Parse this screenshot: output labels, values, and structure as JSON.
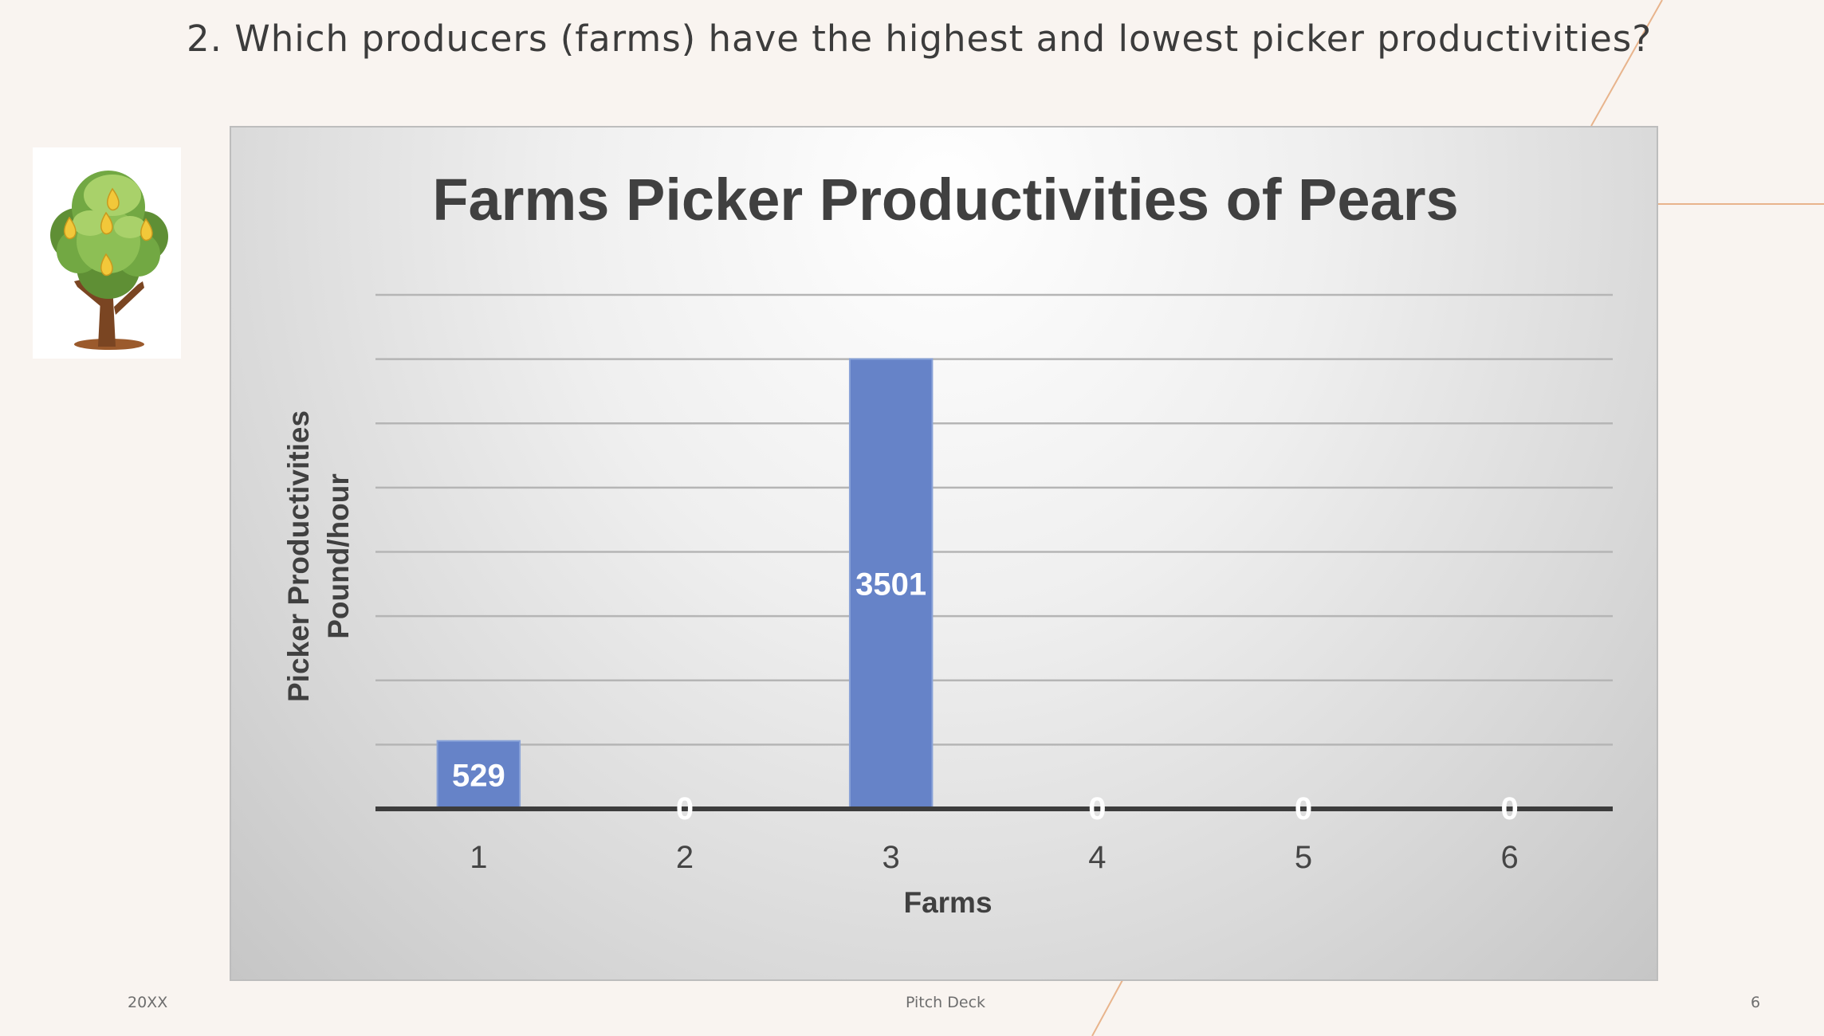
{
  "slide": {
    "heading": "2. Which producers (farms) have the highest and lowest picker productivities?",
    "footer_left": "20XX",
    "footer_center": "Pitch Deck",
    "footer_right": "6",
    "background_color": "#f9f4f0",
    "accent_line_color": "#e8b48c"
  },
  "illustration": {
    "icon": "pear-tree-icon"
  },
  "chart_data": {
    "type": "bar",
    "title": "Farms Picker Productivities of Pears",
    "xlabel": "Farms",
    "ylabel_lines": [
      "Picker Productivities",
      "Pound/hour"
    ],
    "categories": [
      "1",
      "2",
      "3",
      "4",
      "5",
      "6"
    ],
    "values": [
      529,
      0,
      3501,
      0,
      0,
      0
    ],
    "data_labels": [
      "529",
      "0",
      "3501",
      "0",
      "0",
      "0"
    ],
    "ylim": [
      0,
      4000
    ],
    "y_gridline_step": 500,
    "y_tick_labels_shown": false,
    "grid": true,
    "legend": "none",
    "bar_color": "#6683c8"
  }
}
